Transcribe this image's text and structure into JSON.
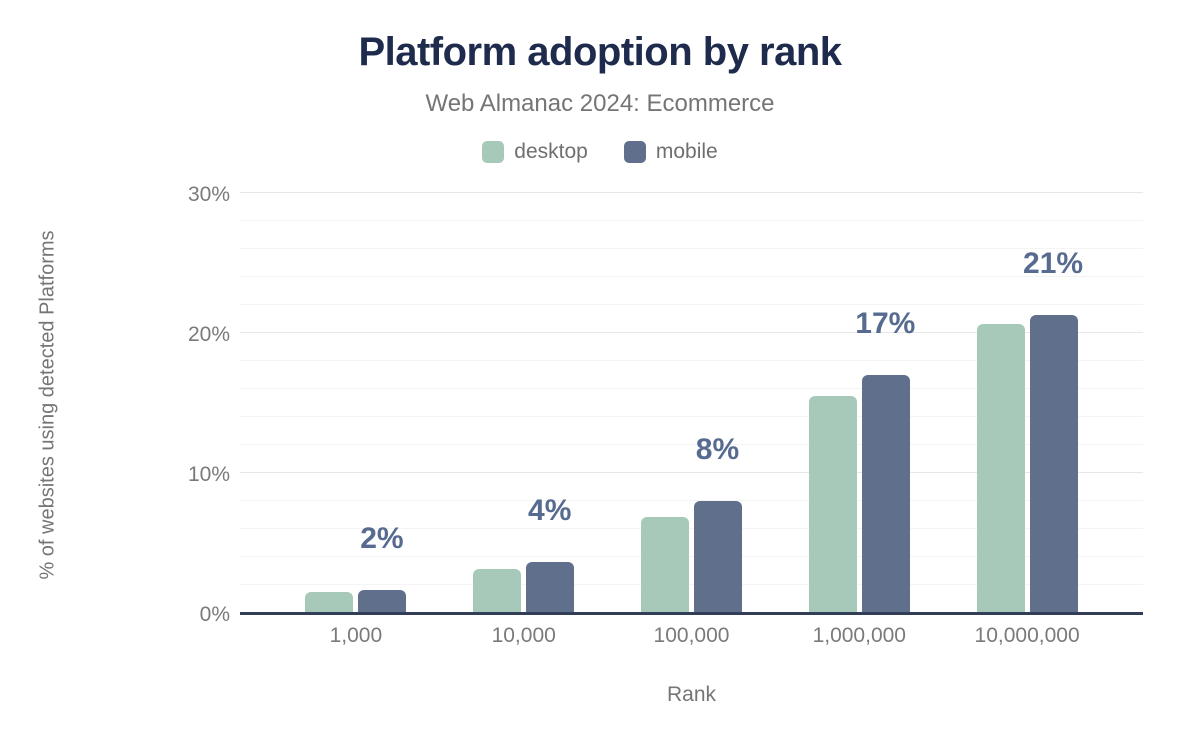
{
  "chart_data": {
    "type": "bar",
    "title": "Platform adoption by rank",
    "subtitle": "Web Almanac 2024: Ecommerce",
    "xlabel": "Rank",
    "ylabel": "% of websites using detected Platforms",
    "categories": [
      "1,000",
      "10,000",
      "100,000",
      "1,000,000",
      "10,000,000"
    ],
    "series": [
      {
        "name": "desktop",
        "color": "#a7c9ba",
        "values": [
          1.4,
          3.1,
          6.8,
          15.4,
          20.6
        ]
      },
      {
        "name": "mobile",
        "color": "#5f6f8c",
        "values": [
          1.6,
          3.6,
          7.9,
          16.9,
          21.2
        ]
      }
    ],
    "data_labels": [
      "2%",
      "4%",
      "8%",
      "17%",
      "21%"
    ],
    "yticks": [
      {
        "label": "0%",
        "value": 0
      },
      {
        "label": "10%",
        "value": 10
      },
      {
        "label": "20%",
        "value": 20
      },
      {
        "label": "30%",
        "value": 30
      }
    ],
    "ylim": [
      0,
      30
    ],
    "grid": {
      "minor_step": 2,
      "major_step": 10,
      "on": true
    },
    "legend_position": "top",
    "colors": {
      "title": "#1e2b4d",
      "subtitle": "#757575",
      "tick_label": "#7a7a7a",
      "data_label": "#566b8f",
      "axis_line": "#323e56",
      "gridline_major": "#e7e7e7",
      "gridline_minor": "#f4f4f4",
      "background": "#ffffff"
    }
  }
}
